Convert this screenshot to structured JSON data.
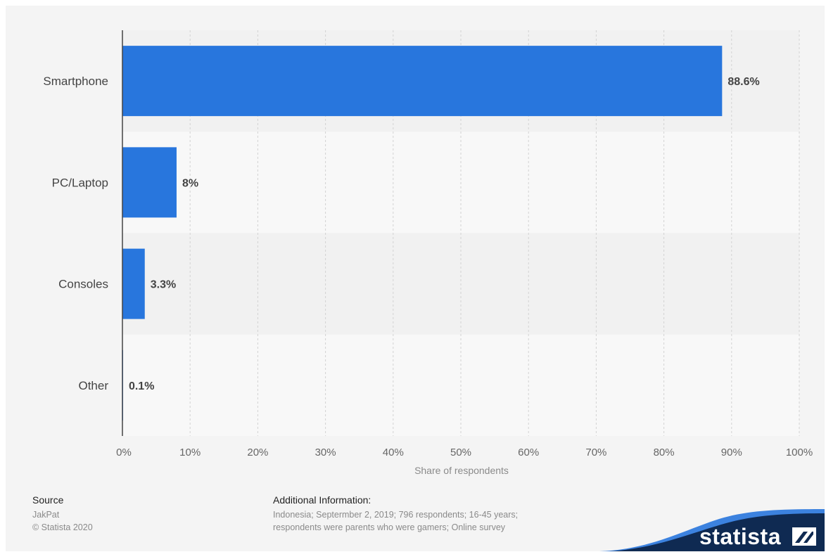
{
  "chart_data": {
    "type": "bar",
    "orientation": "horizontal",
    "categories": [
      "Smartphone",
      "PC/Laptop",
      "Consoles",
      "Other"
    ],
    "values": [
      88.6,
      8,
      3.3,
      0.1
    ],
    "data_labels": [
      "88.6%",
      "8%",
      "3.3%",
      "0.1%"
    ],
    "xlabel": "Share of respondents",
    "ylabel": "",
    "xlim": [
      0,
      100
    ],
    "x_ticks": [
      "0%",
      "10%",
      "20%",
      "30%",
      "40%",
      "50%",
      "60%",
      "70%",
      "80%",
      "90%",
      "100%"
    ],
    "grid": true,
    "bar_color": "#2876dd"
  },
  "footer": {
    "source_title": "Source",
    "source_lines": [
      "JakPat",
      "© Statista 2020"
    ],
    "info_title": "Additional Information:",
    "info_lines": [
      "Indonesia; Septermber 2, 2019; 796 respondents; 16-45 years;",
      "respondents were parents who were gamers; Online survey"
    ]
  },
  "brand": {
    "name": "statista",
    "logo_icon": "statista-logo-icon",
    "color": "#0f2a52",
    "accent": "#2876dd"
  }
}
